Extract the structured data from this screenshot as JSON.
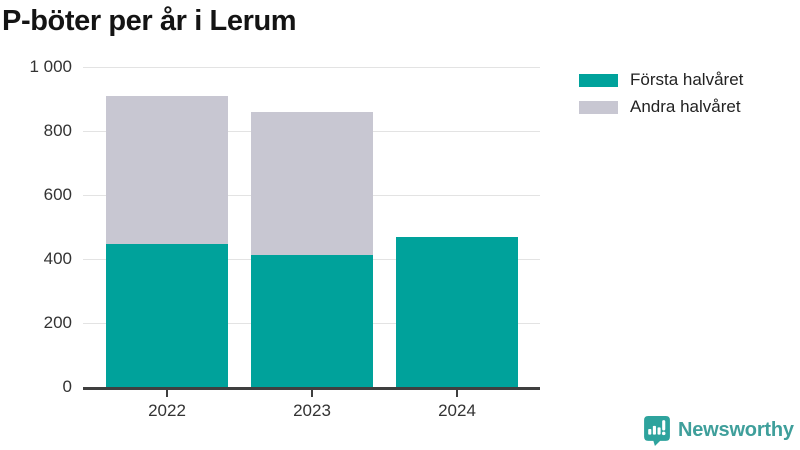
{
  "title": "P-böter per år i Lerum",
  "legend": [
    {
      "label": "Första halvåret",
      "color": "#00a29b"
    },
    {
      "label": "Andra halvåret",
      "color": "#c8c7d2"
    }
  ],
  "branding": {
    "logo_text": "Newsworthy",
    "color": "#3f9f9b"
  },
  "colors": {
    "first_half": "#00a29b",
    "second_half": "#c8c7d2",
    "gridline": "#e3e3e3",
    "axis": "#3f3f3f",
    "text": "#333333",
    "title": "#141414"
  },
  "chart_data": {
    "type": "bar",
    "stacked": true,
    "title": "P-böter per år i Lerum",
    "xlabel": "",
    "ylabel": "",
    "categories": [
      "2022",
      "2023",
      "2024"
    ],
    "series": [
      {
        "name": "Första halvåret",
        "color": "#00a29b",
        "values": [
          446,
          414,
          468
        ]
      },
      {
        "name": "Andra halvåret",
        "color": "#c8c7d2",
        "values": [
          464,
          446,
          0
        ]
      }
    ],
    "totals": [
      910,
      860,
      468
    ],
    "ylim": [
      0,
      1000
    ],
    "yticks": [
      {
        "value": 0,
        "label": "0"
      },
      {
        "value": 200,
        "label": "200"
      },
      {
        "value": 400,
        "label": "400"
      },
      {
        "value": 600,
        "label": "600"
      },
      {
        "value": 800,
        "label": "800"
      },
      {
        "value": 1000,
        "label": "1 000"
      }
    ],
    "grid": "horizontal",
    "legend_position": "top-right"
  }
}
